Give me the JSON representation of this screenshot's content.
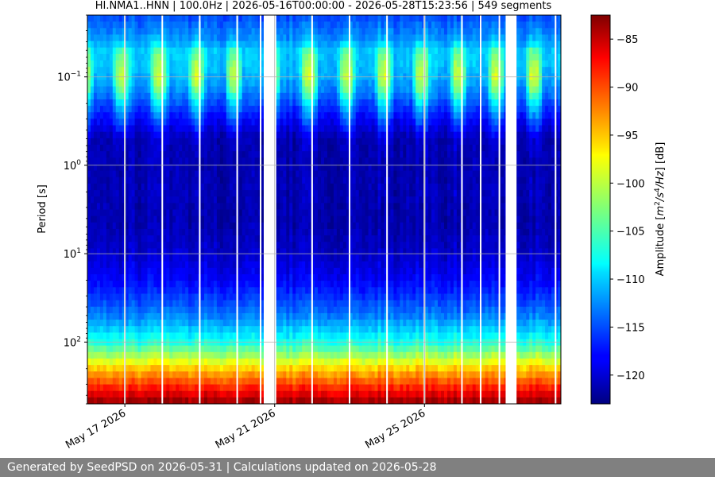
{
  "chart_data": {
    "type": "heatmap",
    "title": "HI.NMA1..HNN | 100.0Hz | 2026-05-16T00:00:00 - 2026-05-28T15:23:56 | 549 segments",
    "ylabel": "Period [s]",
    "xlabel": "",
    "y_scale": "log",
    "y_axis_inverted": true,
    "ylim": [
      0.02,
      500
    ],
    "yticks": [
      {
        "value": 0.1,
        "base": "10",
        "exp": "−1"
      },
      {
        "value": 1,
        "base": "10",
        "exp": "0"
      },
      {
        "value": 10,
        "base": "10",
        "exp": "1"
      },
      {
        "value": 100,
        "base": "10",
        "exp": "2"
      }
    ],
    "xlim": [
      "2026-05-16T00:00:00",
      "2026-05-28T15:23:56"
    ],
    "xticks": [
      "May 17 2026",
      "May 21 2026",
      "May 25 2026"
    ],
    "xtick_dates": [
      "2026-05-17",
      "2026-05-21",
      "2026-05-25"
    ],
    "grid": true,
    "colorbar": {
      "label_prefix": "Amplitude [",
      "label_math": "m",
      "label_sup1": "2",
      "label_mid": "/s",
      "label_sup2": "4",
      "label_end": "/Hz",
      "label_suffix": "] [dB]",
      "colormap": "jet",
      "range": [
        -123,
        -82.5
      ],
      "ticks": [
        "−85",
        "−90",
        "−95",
        "−100",
        "−105",
        "−110",
        "−115",
        "−120"
      ],
      "tick_values": [
        -85,
        -90,
        -95,
        -100,
        -105,
        -110,
        -115,
        -120
      ]
    },
    "data_gaps": [
      {
        "start": "2026-05-20T17:00:00",
        "end": "2026-05-21T01:00:00"
      },
      {
        "start": "2026-05-27T04:00:00",
        "end": "2026-05-27T11:00:00"
      }
    ],
    "segment_breaks": [
      "2026-05-17T00:00:00",
      "2026-05-18T00:00:00",
      "2026-05-19T00:00:00",
      "2026-05-20T00:00:00",
      "2026-05-20T15:00:00",
      "2026-05-21T00:00:00",
      "2026-05-22T00:00:00",
      "2026-05-23T00:00:00",
      "2026-05-24T00:00:00",
      "2026-05-25T00:00:00",
      "2026-05-26T00:00:00",
      "2026-05-26T12:00:00",
      "2026-05-27T00:00:00",
      "2026-05-28T12:00:00"
    ],
    "amplitude_profile_db": {
      "periods_s": [
        0.02,
        0.04,
        0.05,
        0.07,
        0.1,
        0.15,
        0.2,
        0.3,
        0.5,
        1,
        2,
        3,
        5,
        10,
        20,
        30,
        50,
        70,
        100,
        150,
        200,
        300,
        500
      ],
      "day_db": [
        -115,
        -110,
        -104,
        -101,
        -99,
        -103,
        -108,
        -113,
        -119,
        -121,
        -120,
        -121,
        -121,
        -120,
        -118,
        -116,
        -113,
        -110,
        -106,
        -100,
        -95,
        -90,
        -83
      ],
      "night_db": [
        -115,
        -112,
        -110,
        -110,
        -111,
        -113,
        -115,
        -118,
        -121,
        -121,
        -121,
        -121,
        -121,
        -120,
        -118,
        -116,
        -113,
        -110,
        -107,
        -101,
        -96,
        -90,
        -83
      ]
    }
  },
  "footer": {
    "text": "Generated by SeedPSD on 2026-05-31 | Calculations updated on 2026-05-28"
  }
}
